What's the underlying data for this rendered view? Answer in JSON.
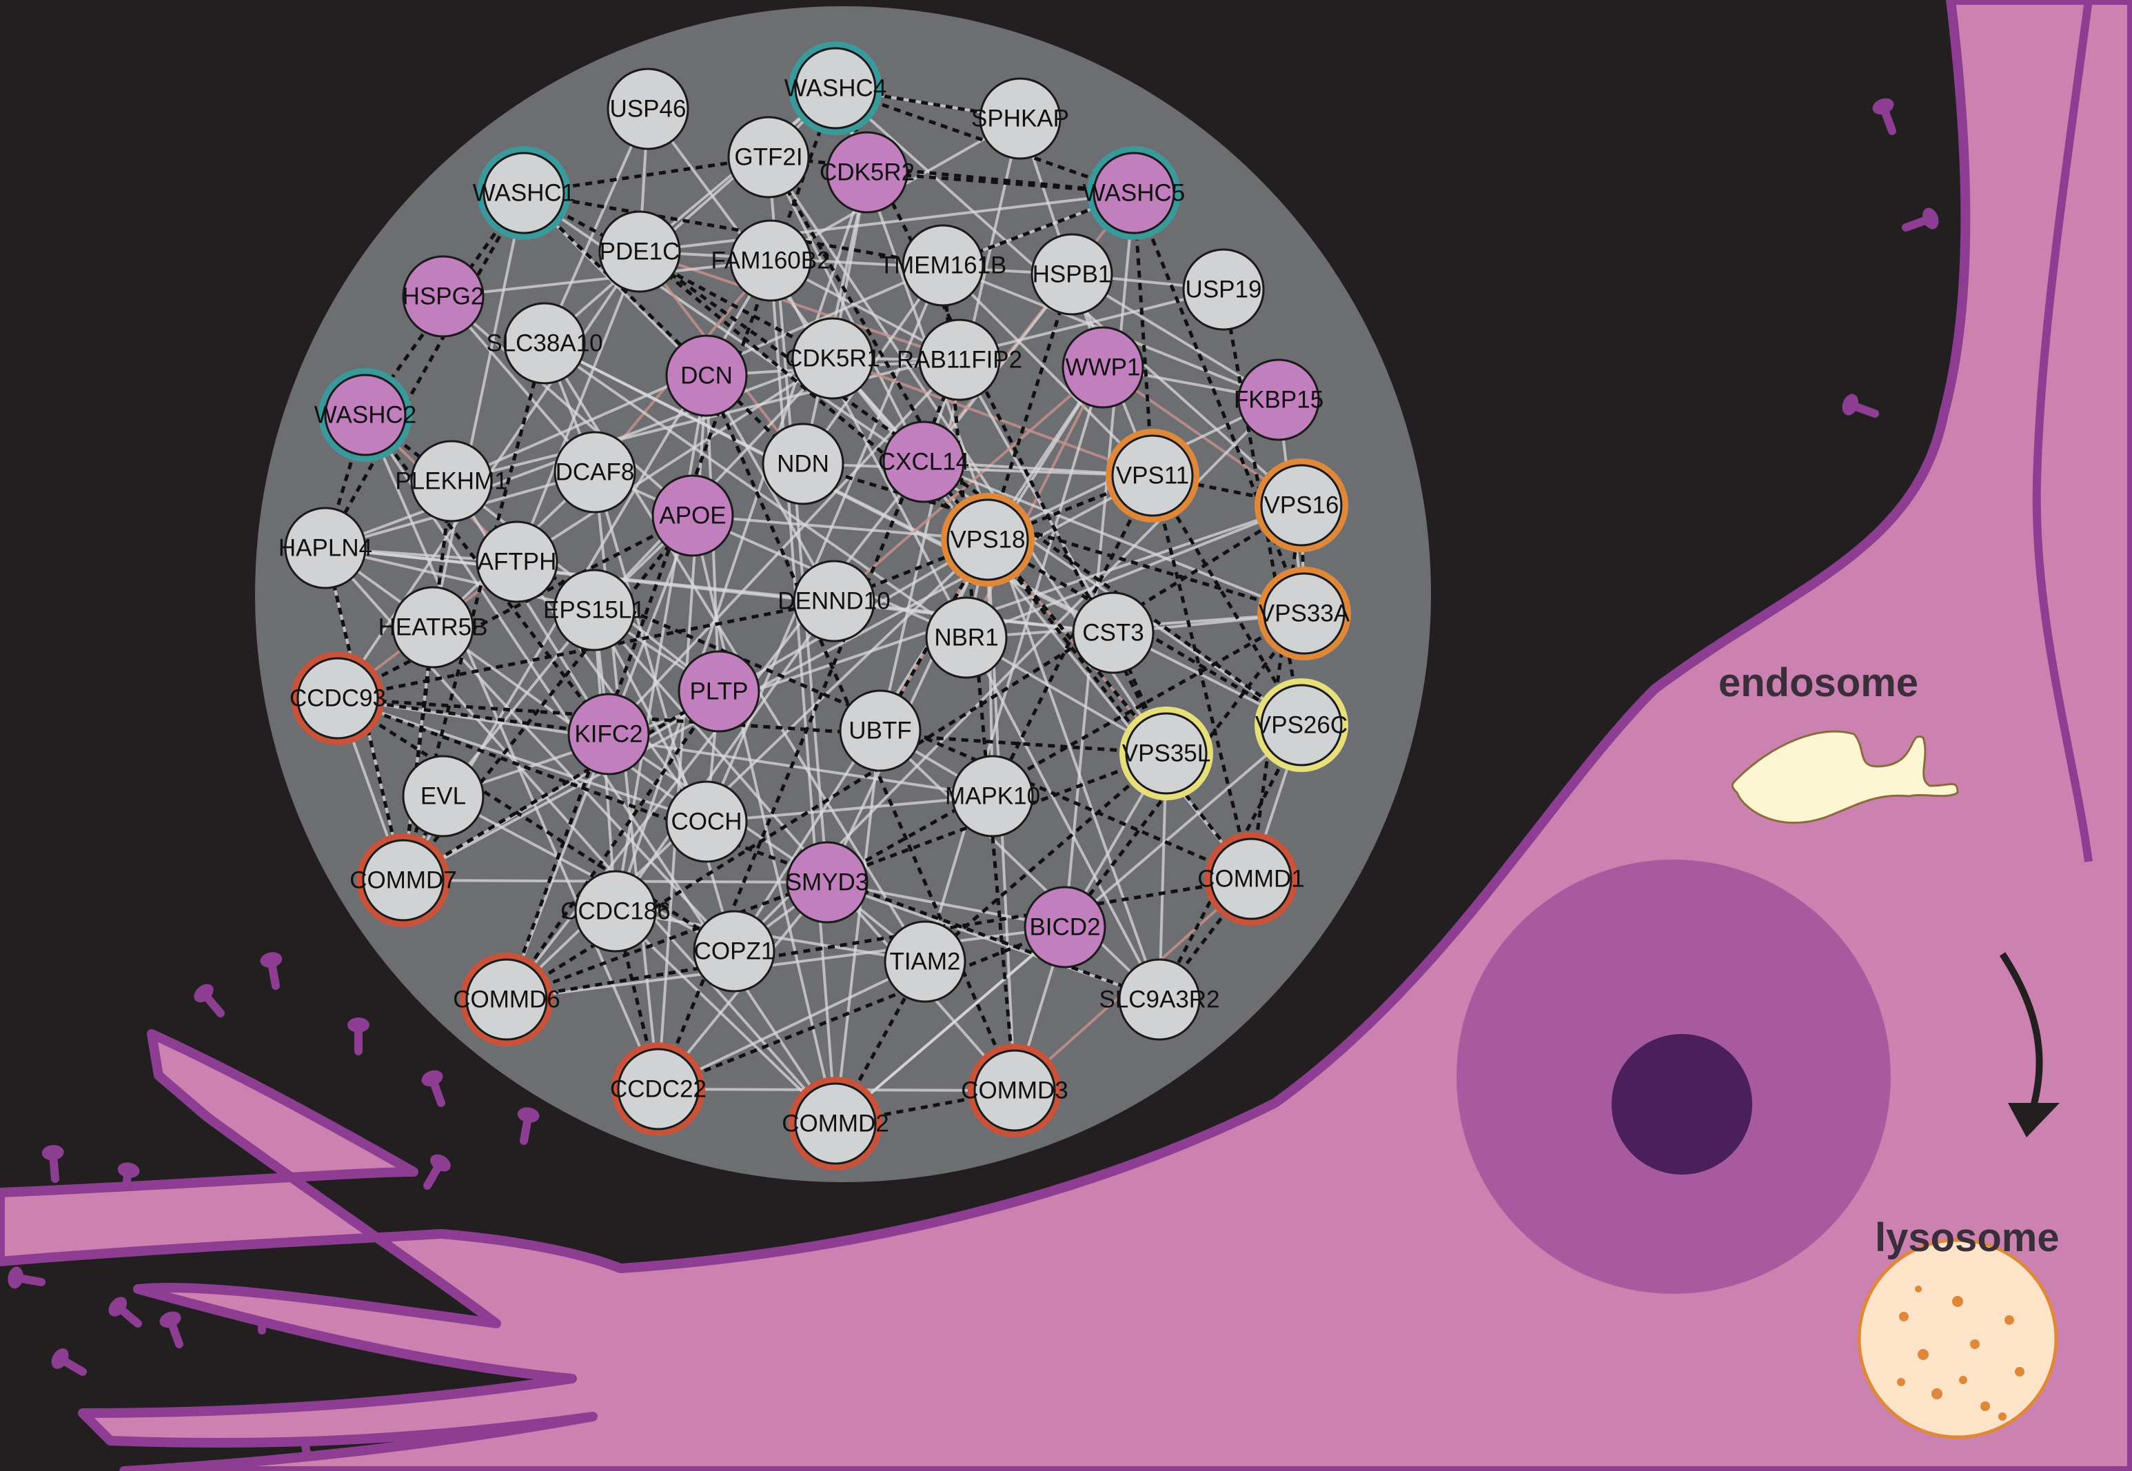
{
  "labels": {
    "endosome": "endosome",
    "lysosome": "lysosome"
  },
  "colors": {
    "background": "#231f20",
    "cell_fill": "#cc82b0",
    "cell_outline": "#8d3e93",
    "network_disk": "#6d6e71",
    "node_gray": "#d1d2d4",
    "node_pink": "#c27fbe",
    "ring_teal": "#3a9a9b",
    "ring_orange": "#e0883a",
    "ring_red": "#c8533a",
    "ring_yellow": "#e6df7a",
    "nucleus_outer": "#a75b9e",
    "nucleolus": "#4a1f5c",
    "endosome": "#fbf5d2",
    "lysosome": "#fde3c8"
  },
  "network": {
    "nodes": [
      {
        "id": "USP46",
        "fill": "gray",
        "ring": null
      },
      {
        "id": "WASHC4",
        "fill": "gray",
        "ring": "teal"
      },
      {
        "id": "SPHKAP",
        "fill": "gray",
        "ring": null
      },
      {
        "id": "GTF2I",
        "fill": "gray",
        "ring": null
      },
      {
        "id": "CDK5R2",
        "fill": "pink",
        "ring": null
      },
      {
        "id": "WASHC1",
        "fill": "gray",
        "ring": "teal"
      },
      {
        "id": "WASHC5",
        "fill": "pink",
        "ring": "teal"
      },
      {
        "id": "PDE1C",
        "fill": "gray",
        "ring": null
      },
      {
        "id": "FAM160B2",
        "fill": "gray",
        "ring": null
      },
      {
        "id": "TMEM161B",
        "fill": "gray",
        "ring": null
      },
      {
        "id": "HSPB1",
        "fill": "gray",
        "ring": null
      },
      {
        "id": "USP19",
        "fill": "gray",
        "ring": null
      },
      {
        "id": "HSPG2",
        "fill": "pink",
        "ring": null
      },
      {
        "id": "SLC38A10",
        "fill": "gray",
        "ring": null
      },
      {
        "id": "DCN",
        "fill": "pink",
        "ring": null
      },
      {
        "id": "CDK5R1",
        "fill": "gray",
        "ring": null
      },
      {
        "id": "RAB11FIP2",
        "fill": "gray",
        "ring": null
      },
      {
        "id": "WWP1",
        "fill": "pink",
        "ring": null
      },
      {
        "id": "FKBP15",
        "fill": "pink",
        "ring": null
      },
      {
        "id": "WASHC2",
        "fill": "pink",
        "ring": "teal"
      },
      {
        "id": "PLEKHM1",
        "fill": "gray",
        "ring": null
      },
      {
        "id": "DCAF8",
        "fill": "gray",
        "ring": null
      },
      {
        "id": "NDN",
        "fill": "gray",
        "ring": null
      },
      {
        "id": "CXCL14",
        "fill": "pink",
        "ring": null
      },
      {
        "id": "VPS11",
        "fill": "gray",
        "ring": "orange"
      },
      {
        "id": "VPS16",
        "fill": "gray",
        "ring": "orange"
      },
      {
        "id": "APOE",
        "fill": "pink",
        "ring": null
      },
      {
        "id": "VPS18",
        "fill": "gray",
        "ring": "orange"
      },
      {
        "id": "HAPLN4",
        "fill": "gray",
        "ring": null
      },
      {
        "id": "AFTPH",
        "fill": "gray",
        "ring": null
      },
      {
        "id": "VPS33A",
        "fill": "gray",
        "ring": "orange"
      },
      {
        "id": "EPS15L1",
        "fill": "gray",
        "ring": null
      },
      {
        "id": "DENND10",
        "fill": "gray",
        "ring": null
      },
      {
        "id": "HEATR5B",
        "fill": "gray",
        "ring": null
      },
      {
        "id": "NBR1",
        "fill": "gray",
        "ring": null
      },
      {
        "id": "CST3",
        "fill": "gray",
        "ring": null
      },
      {
        "id": "CCDC93",
        "fill": "gray",
        "ring": "red"
      },
      {
        "id": "PLTP",
        "fill": "pink",
        "ring": null
      },
      {
        "id": "VPS26C",
        "fill": "gray",
        "ring": "yellow"
      },
      {
        "id": "KIFC2",
        "fill": "pink",
        "ring": null
      },
      {
        "id": "UBTF",
        "fill": "gray",
        "ring": null
      },
      {
        "id": "VPS35L",
        "fill": "gray",
        "ring": "yellow"
      },
      {
        "id": "EVL",
        "fill": "gray",
        "ring": null
      },
      {
        "id": "MAPK10",
        "fill": "gray",
        "ring": null
      },
      {
        "id": "COCH",
        "fill": "gray",
        "ring": null
      },
      {
        "id": "COMMD7",
        "fill": "gray",
        "ring": "red"
      },
      {
        "id": "SMYD3",
        "fill": "pink",
        "ring": null
      },
      {
        "id": "COMMD1",
        "fill": "gray",
        "ring": "red"
      },
      {
        "id": "CCDC186",
        "fill": "gray",
        "ring": null
      },
      {
        "id": "BICD2",
        "fill": "pink",
        "ring": null
      },
      {
        "id": "COPZ1",
        "fill": "gray",
        "ring": null
      },
      {
        "id": "TIAM2",
        "fill": "gray",
        "ring": null
      },
      {
        "id": "COMMD6",
        "fill": "gray",
        "ring": "red"
      },
      {
        "id": "SLC9A3R2",
        "fill": "gray",
        "ring": null
      },
      {
        "id": "CCDC22",
        "fill": "gray",
        "ring": "red"
      },
      {
        "id": "COMMD3",
        "fill": "gray",
        "ring": "red"
      },
      {
        "id": "COMMD2",
        "fill": "gray",
        "ring": "red"
      }
    ]
  }
}
